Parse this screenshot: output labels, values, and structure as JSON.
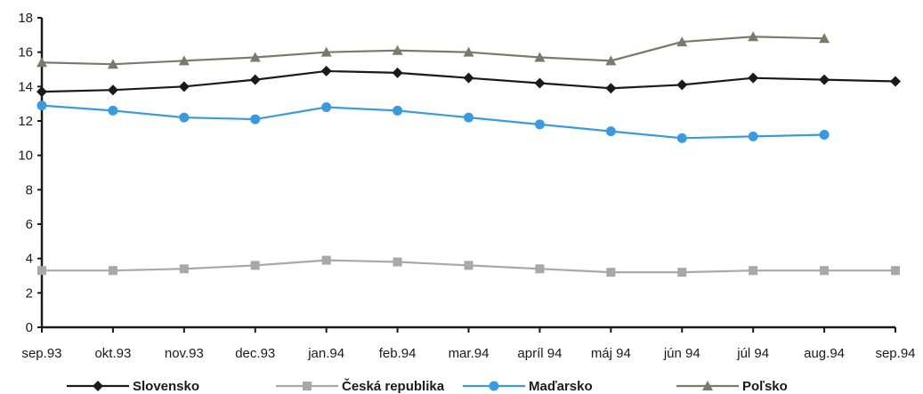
{
  "chart_data": {
    "type": "line",
    "title": "",
    "xlabel": "",
    "ylabel": "",
    "categories": [
      "sep.93",
      "okt.93",
      "nov.93",
      "dec.93",
      "jan.94",
      "feb.94",
      "mar.94",
      "apríl 94",
      "máj 94",
      "jún 94",
      "júl 94",
      "aug.94",
      "sep.94"
    ],
    "ylim": [
      0,
      18
    ],
    "yticks": [
      0,
      2,
      4,
      6,
      8,
      10,
      12,
      14,
      16,
      18
    ],
    "grid": false,
    "legend_position": "bottom",
    "series": [
      {
        "name": "Slovensko",
        "color": "#1a1a1a",
        "marker": "diamond",
        "values": [
          13.7,
          13.8,
          14.0,
          14.4,
          14.9,
          14.8,
          14.5,
          14.2,
          13.9,
          14.1,
          14.5,
          14.4,
          14.3
        ]
      },
      {
        "name": "Česká republika",
        "color": "#a8a8a8",
        "marker": "square",
        "values": [
          3.3,
          3.3,
          3.4,
          3.6,
          3.9,
          3.8,
          3.6,
          3.4,
          3.2,
          3.2,
          3.3,
          3.3,
          3.3
        ]
      },
      {
        "name": "Maďarsko",
        "color": "#3a9ae0",
        "marker": "circle",
        "values": [
          12.9,
          12.6,
          12.2,
          12.1,
          12.8,
          12.6,
          12.2,
          11.8,
          11.4,
          11.0,
          11.1,
          11.2,
          null
        ]
      },
      {
        "name": "Poľsko",
        "color": "#7a7a6a",
        "marker": "triangle",
        "values": [
          15.4,
          15.3,
          15.5,
          15.7,
          16.0,
          16.1,
          16.0,
          15.7,
          15.5,
          16.6,
          16.9,
          16.8,
          null
        ]
      }
    ]
  }
}
